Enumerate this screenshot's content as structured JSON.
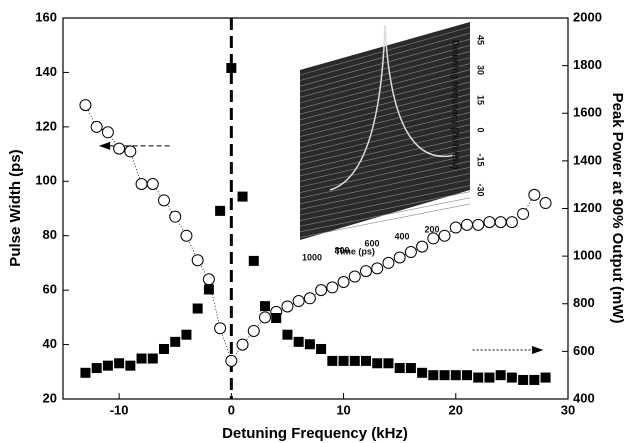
{
  "chart_data": {
    "type": "scatter",
    "x_label": "Detuning Frequency (kHz)",
    "y_label": "Pulse Width (ps)",
    "y2_label": "Peak Power at 90% Output (mW)",
    "xlim": [
      -15,
      30
    ],
    "xticks": [
      -10,
      0,
      10,
      20,
      30
    ],
    "ylim": [
      20,
      160
    ],
    "yticks": [
      20,
      40,
      60,
      80,
      100,
      120,
      140,
      160
    ],
    "y2lim": [
      400,
      2000
    ],
    "y2ticks": [
      400,
      600,
      800,
      1000,
      1200,
      1400,
      1600,
      1800,
      2000
    ],
    "series": [
      {
        "name": "Pulse Width",
        "marker": "circle",
        "color": "#000000",
        "x": [
          -13,
          -12,
          -11,
          -10,
          -9,
          -8,
          -7,
          -6,
          -5,
          -4,
          -3,
          -2,
          -1,
          0,
          1,
          2,
          3,
          4,
          5,
          6,
          7,
          8,
          9,
          10,
          11,
          12,
          13,
          14,
          15,
          16,
          17,
          18,
          19,
          20,
          21,
          22,
          23,
          24,
          25,
          26,
          27,
          28
        ],
        "values": [
          128,
          120,
          118,
          112,
          111,
          99,
          99,
          93,
          87,
          80,
          71,
          64,
          46,
          34,
          40,
          45,
          50,
          52,
          54,
          56,
          57,
          60,
          61,
          63,
          65,
          67,
          68,
          70,
          72,
          74,
          76,
          79,
          80,
          83,
          84,
          84,
          85,
          85,
          85,
          88,
          95,
          92
        ]
      },
      {
        "name": "Peak Power",
        "marker": "square",
        "color": "#000000",
        "axis": "y2",
        "x": [
          -13,
          -12,
          -11,
          -10,
          -9,
          -8,
          -7,
          -6,
          -5,
          -4,
          -3,
          -2,
          -1,
          0,
          1,
          2,
          3,
          4,
          5,
          6,
          7,
          8,
          9,
          10,
          11,
          12,
          13,
          14,
          15,
          16,
          17,
          18,
          19,
          20,
          21,
          22,
          23,
          24,
          25,
          26,
          27,
          28
        ],
        "values": [
          510,
          530,
          540,
          550,
          540,
          570,
          570,
          610,
          640,
          670,
          780,
          860,
          1190,
          1790,
          1250,
          980,
          790,
          740,
          670,
          640,
          630,
          610,
          560,
          560,
          560,
          560,
          550,
          550,
          530,
          530,
          510,
          500,
          500,
          500,
          500,
          490,
          490,
          500,
          490,
          480,
          480,
          490
        ]
      }
    ],
    "inset": {
      "y_label": "Detuning frequency (2kHz/div)",
      "x_label": "Time (ps)",
      "x_ticks": [
        "1000",
        "800",
        "600",
        "400",
        "200"
      ],
      "y_ticks": [
        "-30",
        "-15",
        "0",
        "15",
        "30",
        "45"
      ]
    }
  }
}
